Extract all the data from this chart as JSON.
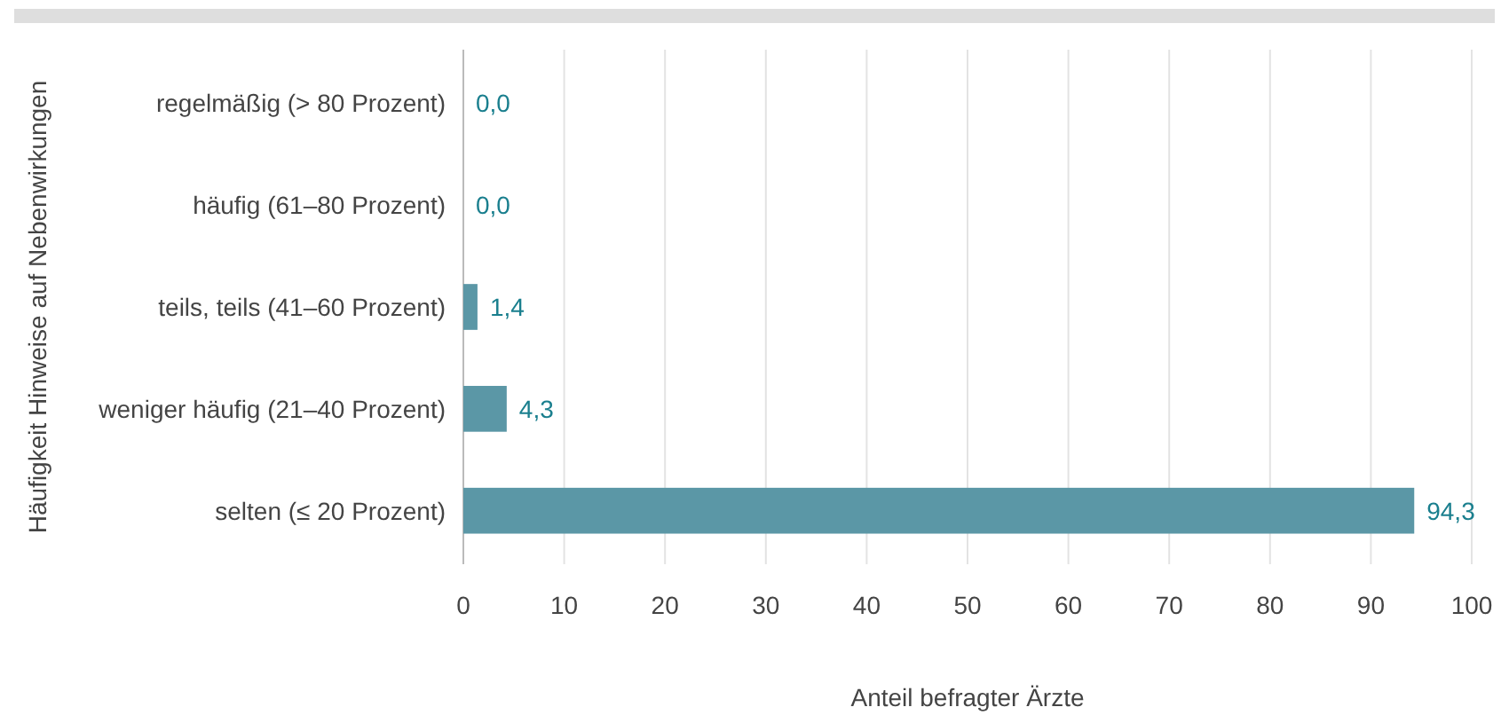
{
  "chart_data": {
    "type": "bar",
    "orientation": "horizontal",
    "xlabel": "Anteil befragter Ärzte",
    "ylabel": "Häufigkeit Hinweise auf Nebenwirkungen",
    "categories": [
      "regelmäßig (> 80 Prozent)",
      "häufig (61–80 Prozent)",
      "teils, teils (41–60 Prozent)",
      "weniger häufig (21–40 Prozent)",
      "selten (≤ 20 Prozent)"
    ],
    "values": [
      0.0,
      0.0,
      1.4,
      4.3,
      94.3
    ],
    "value_labels": [
      "0,0",
      "0,0",
      "1,4",
      "4,3",
      "94,3"
    ],
    "color": "#5b97a6",
    "xlim": [
      0,
      100
    ],
    "xticks": [
      0,
      10,
      20,
      30,
      40,
      50,
      60,
      70,
      80,
      90,
      100
    ],
    "grid": "x"
  }
}
